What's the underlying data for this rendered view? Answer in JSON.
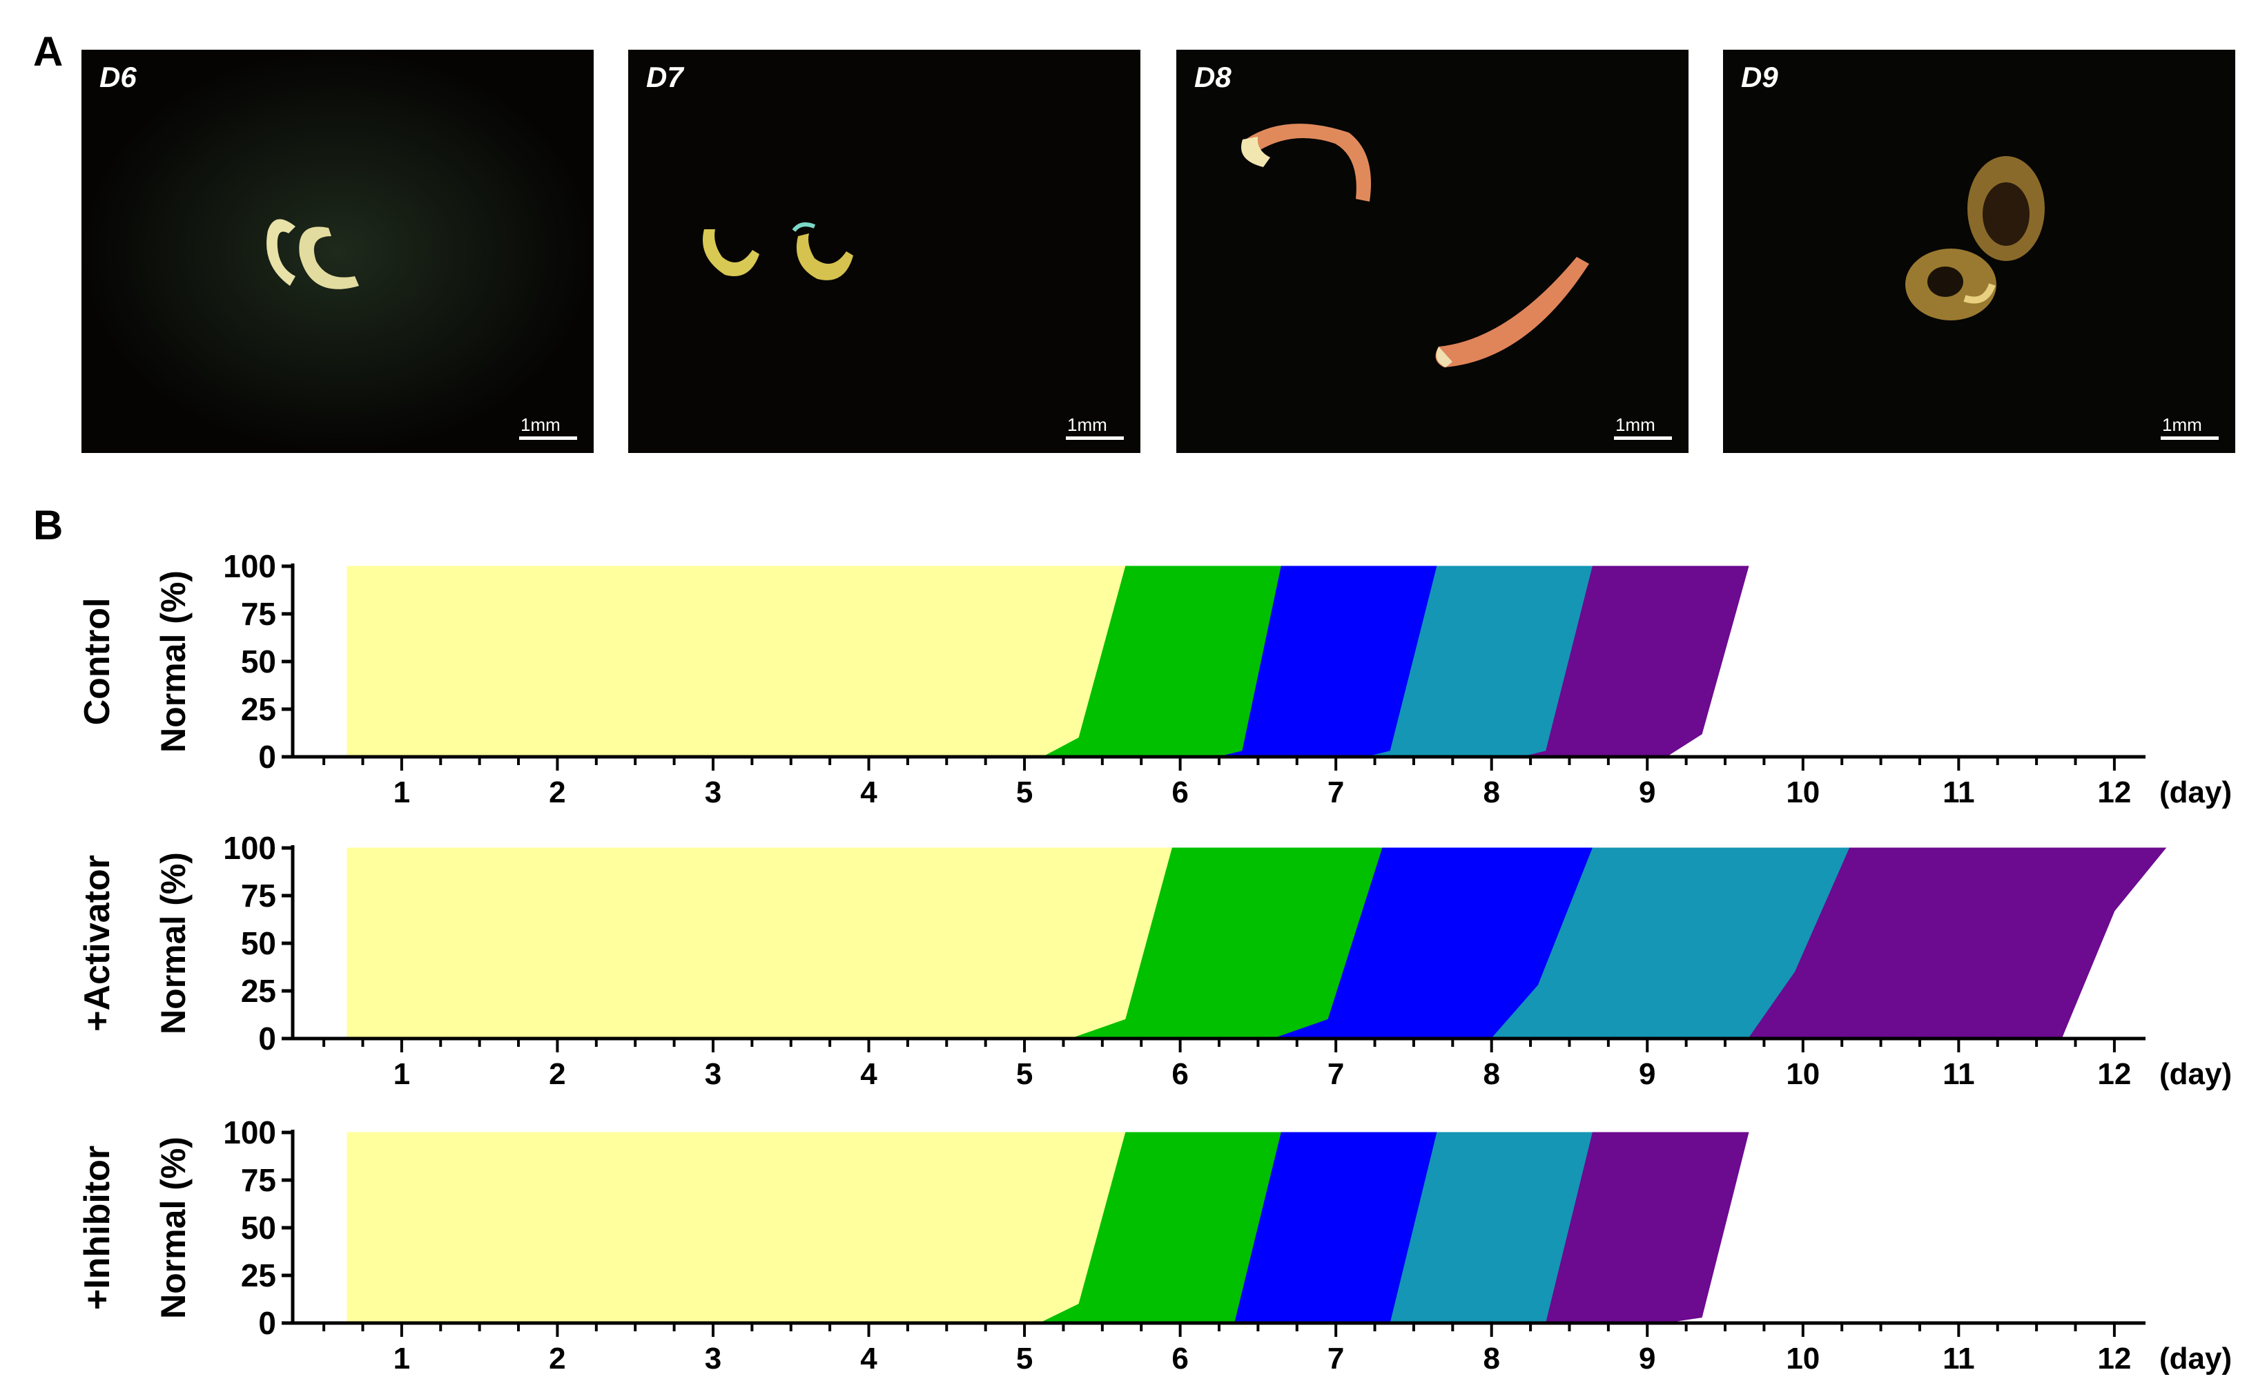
{
  "panel_a": {
    "letter": "A",
    "photos": [
      {
        "day": "D6",
        "scale_text": "1mm"
      },
      {
        "day": "D7",
        "scale_text": "1mm"
      },
      {
        "day": "D8",
        "scale_text": "1mm"
      },
      {
        "day": "D9",
        "scale_text": "1mm"
      }
    ]
  },
  "panel_b": {
    "letter": "B"
  },
  "chart_data": {
    "type": "area",
    "stacked": true,
    "x_ticks": [
      "1",
      "2",
      "3",
      "4",
      "5",
      "6",
      "7",
      "8",
      "9",
      "10",
      "11",
      "12"
    ],
    "x_unit": "(day)",
    "y_ticks": [
      "0",
      "25",
      "50",
      "75",
      "100"
    ],
    "ylabel": "Normal  (%)",
    "ylim": [
      0,
      100
    ],
    "xlim": [
      0.3,
      12.2
    ],
    "stage_colors": [
      "#ffff9e",
      "#00c000",
      "#0000ff",
      "#1496b4",
      "#6c0a90"
    ],
    "panels": [
      {
        "condition": "Control",
        "stages": [
          {
            "color": "#ffff9e",
            "poly": [
              [
                0.65,
                0
              ],
              [
                0.65,
                100
              ],
              [
                5.65,
                100
              ],
              [
                5.35,
                10
              ],
              [
                5.12,
                0
              ]
            ]
          },
          {
            "color": "#00c000",
            "poly": [
              [
                5.12,
                0
              ],
              [
                5.35,
                10
              ],
              [
                5.65,
                100
              ],
              [
                6.65,
                100
              ],
              [
                6.4,
                0
              ]
            ]
          },
          {
            "color": "#0000ff",
            "poly": [
              [
                6.25,
                0
              ],
              [
                6.4,
                3
              ],
              [
                6.65,
                100
              ],
              [
                7.65,
                100
              ],
              [
                7.35,
                0
              ]
            ]
          },
          {
            "color": "#1496b4",
            "poly": [
              [
                7.2,
                0
              ],
              [
                7.35,
                3
              ],
              [
                7.65,
                100
              ],
              [
                8.65,
                100
              ],
              [
                8.35,
                0
              ]
            ]
          },
          {
            "color": "#6c0a90",
            "poly": [
              [
                8.2,
                0
              ],
              [
                8.35,
                3
              ],
              [
                8.65,
                100
              ],
              [
                9.65,
                100
              ],
              [
                9.35,
                12
              ],
              [
                9.12,
                0
              ]
            ]
          }
        ]
      },
      {
        "condition": "+Activator",
        "stages": [
          {
            "color": "#ffff9e",
            "poly": [
              [
                0.65,
                0
              ],
              [
                0.65,
                100
              ],
              [
                5.95,
                100
              ],
              [
                5.65,
                10
              ],
              [
                5.3,
                0
              ]
            ]
          },
          {
            "color": "#00c000",
            "poly": [
              [
                5.3,
                0
              ],
              [
                5.65,
                10
              ],
              [
                5.95,
                100
              ],
              [
                7.3,
                100
              ],
              [
                6.95,
                10
              ],
              [
                6.6,
                0
              ]
            ]
          },
          {
            "color": "#0000ff",
            "poly": [
              [
                6.6,
                0
              ],
              [
                6.95,
                10
              ],
              [
                7.3,
                100
              ],
              [
                8.65,
                100
              ],
              [
                8.3,
                28
              ],
              [
                8.0,
                0
              ]
            ]
          },
          {
            "color": "#1496b4",
            "poly": [
              [
                8.0,
                0
              ],
              [
                8.3,
                28
              ],
              [
                8.65,
                100
              ],
              [
                10.3,
                100
              ],
              [
                9.95,
                35
              ],
              [
                9.65,
                0
              ]
            ]
          },
          {
            "color": "#6c0a90",
            "poly": [
              [
                9.65,
                0
              ],
              [
                9.95,
                35
              ],
              [
                10.3,
                100
              ],
              [
                12.33,
                100
              ],
              [
                12.0,
                67
              ],
              [
                11.66,
                0
              ]
            ]
          }
        ]
      },
      {
        "condition": "+Inhibitor",
        "stages": [
          {
            "color": "#ffff9e",
            "poly": [
              [
                0.65,
                0
              ],
              [
                0.65,
                100
              ],
              [
                5.65,
                100
              ],
              [
                5.35,
                10
              ],
              [
                5.1,
                0
              ]
            ]
          },
          {
            "color": "#00c000",
            "poly": [
              [
                5.1,
                0
              ],
              [
                5.35,
                10
              ],
              [
                5.65,
                100
              ],
              [
                6.65,
                100
              ],
              [
                6.35,
                0
              ]
            ]
          },
          {
            "color": "#0000ff",
            "poly": [
              [
                6.35,
                0
              ],
              [
                6.65,
                100
              ],
              [
                7.65,
                100
              ],
              [
                7.35,
                0
              ]
            ]
          },
          {
            "color": "#1496b4",
            "poly": [
              [
                7.35,
                0
              ],
              [
                7.65,
                100
              ],
              [
                8.65,
                100
              ],
              [
                8.35,
                0
              ]
            ]
          },
          {
            "color": "#6c0a90",
            "poly": [
              [
                8.35,
                0
              ],
              [
                8.65,
                100
              ],
              [
                9.65,
                100
              ],
              [
                9.35,
                3
              ],
              [
                9.1,
                0
              ]
            ]
          }
        ]
      }
    ]
  }
}
